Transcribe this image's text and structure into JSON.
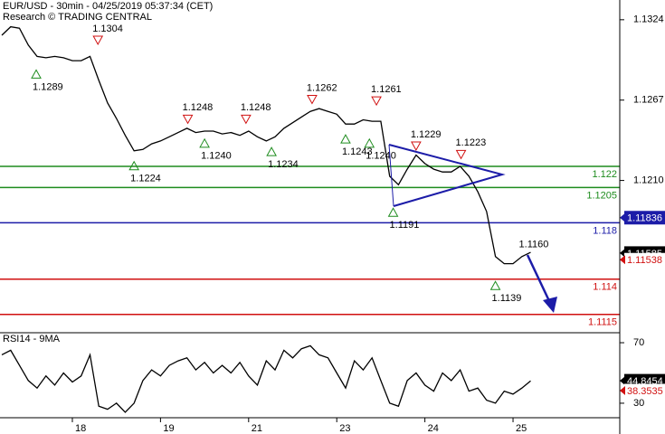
{
  "chart_data": [
    {
      "type": "line",
      "title": "EUR/USD - 30min - 04/25/2019 05:37:34 (CET)",
      "subtitle": "Research © TRADING CENTRAL",
      "xlim": [
        0.179,
        7.211
      ],
      "ylim": [
        1.1102,
        1.1338
      ],
      "yticks": [
        1.1324,
        1.1267,
        {
          "value": 1.121,
          "label": "1.1210"
        }
      ],
      "x": [
        0.2,
        0.3,
        0.4,
        0.5,
        0.6,
        0.7,
        0.8,
        0.9,
        1.0,
        1.1,
        1.2,
        1.3,
        1.4,
        1.5,
        1.6,
        1.7,
        1.8,
        1.9,
        2.0,
        2.1,
        2.2,
        2.3,
        2.4,
        2.5,
        2.6,
        2.7,
        2.8,
        2.9,
        3.0,
        3.1,
        3.2,
        3.3,
        3.4,
        3.5,
        3.6,
        3.7,
        3.8,
        3.9,
        4.0,
        4.1,
        4.2,
        4.3,
        4.4,
        4.5,
        4.6,
        4.7,
        4.8,
        4.9,
        5.0,
        5.1,
        5.2,
        5.3,
        5.4,
        5.5,
        5.6,
        5.7,
        5.8,
        5.9,
        6.0,
        6.1,
        6.2
      ],
      "series": [
        {
          "color": "#000000",
          "values": [
            1.1313,
            1.1319,
            1.1318,
            1.1306,
            1.1298,
            1.1297,
            1.1298,
            1.1297,
            1.1295,
            1.1295,
            1.1298,
            1.1281,
            1.1265,
            1.1254,
            1.1242,
            1.1231,
            1.1232,
            1.1236,
            1.1238,
            1.1241,
            1.1244,
            1.1247,
            1.1244,
            1.1245,
            1.1245,
            1.1243,
            1.1244,
            1.1242,
            1.1245,
            1.1241,
            1.1238,
            1.1241,
            1.1247,
            1.1251,
            1.1255,
            1.1259,
            1.1261,
            1.1259,
            1.1257,
            1.125,
            1.125,
            1.1253,
            1.1252,
            1.1252,
            1.1213,
            1.1207,
            1.1218,
            1.1228,
            1.1222,
            1.1218,
            1.1216,
            1.1216,
            1.122,
            1.1213,
            1.1202,
            1.1188,
            1.1156,
            1.1151,
            1.1151,
            1.1156,
            1.1159
          ]
        }
      ],
      "levels": [
        {
          "value": 1.122,
          "color": "#1e8c1e"
        },
        {
          "value": 1.1205,
          "color": "#1e8c1e"
        },
        {
          "value": 1.118,
          "color": "#1c1ca8"
        },
        {
          "value": 1.114,
          "color": "#d01010"
        },
        {
          "value": 1.1115,
          "color": "#d01010"
        }
      ],
      "annotations": [
        {
          "x": 1.29,
          "value": 1.1304,
          "marker": "down"
        },
        {
          "x": 0.59,
          "value": 1.1289,
          "marker": "up"
        },
        {
          "x": 1.7,
          "value": 1.1224,
          "marker": "up"
        },
        {
          "x": 2.31,
          "value": 1.1248,
          "marker": "down"
        },
        {
          "x": 2.5,
          "value": 1.124,
          "label": "1.1240",
          "marker": "up"
        },
        {
          "x": 2.97,
          "value": 1.1248,
          "marker": "down"
        },
        {
          "x": 3.26,
          "value": 1.1234,
          "marker": "up"
        },
        {
          "x": 3.72,
          "value": 1.1262,
          "marker": "down"
        },
        {
          "x": 4.1,
          "value": 1.1243,
          "marker": "up"
        },
        {
          "x": 4.37,
          "value": 1.124,
          "label": "1.1240",
          "marker": "up"
        },
        {
          "x": 4.45,
          "value": 1.1261,
          "marker": "down"
        },
        {
          "x": 4.64,
          "value": 1.1191,
          "marker": "up"
        },
        {
          "x": 4.9,
          "value": 1.1229,
          "marker": "down"
        },
        {
          "x": 5.41,
          "value": 1.1223,
          "marker": "down"
        },
        {
          "x": 6.2,
          "value": 1.116,
          "label": "1.1160"
        },
        {
          "x": 5.8,
          "value": 1.1139,
          "marker": "up"
        }
      ],
      "price_tags": [
        {
          "value": 1.11836,
          "color": "#1c1ca8",
          "filled": true
        },
        {
          "value": 1.11585,
          "color": "#000000",
          "filled": true
        },
        {
          "value": 1.11538,
          "color": "#d01010",
          "filled": false
        }
      ]
    },
    {
      "type": "line",
      "title": "RSI14 - 9MA",
      "xlim": [
        0.179,
        7.211
      ],
      "ylim": [
        20.4,
        76.6
      ],
      "yticks": [
        70,
        30
      ],
      "xticks": [
        {
          "value": 1,
          "label": "18"
        },
        {
          "value": 2,
          "label": "19"
        },
        {
          "value": 3,
          "label": "21"
        },
        {
          "value": 4,
          "label": "23"
        },
        {
          "value": 5,
          "label": "24"
        },
        {
          "value": 6,
          "label": "25"
        }
      ],
      "x": [
        0.2,
        0.3,
        0.4,
        0.5,
        0.6,
        0.7,
        0.8,
        0.9,
        1.0,
        1.1,
        1.2,
        1.3,
        1.4,
        1.5,
        1.6,
        1.7,
        1.8,
        1.9,
        2.0,
        2.1,
        2.2,
        2.3,
        2.4,
        2.5,
        2.6,
        2.7,
        2.8,
        2.9,
        3.0,
        3.1,
        3.2,
        3.3,
        3.4,
        3.5,
        3.6,
        3.7,
        3.8,
        3.9,
        4.0,
        4.1,
        4.2,
        4.3,
        4.4,
        4.5,
        4.6,
        4.7,
        4.8,
        4.9,
        5.0,
        5.1,
        5.2,
        5.3,
        5.4,
        5.5,
        5.6,
        5.7,
        5.8,
        5.9,
        6.0,
        6.1,
        6.2
      ],
      "series": [
        {
          "color": "#000000",
          "values": [
            62,
            65,
            55,
            45,
            40,
            48,
            42,
            50,
            44,
            48,
            62,
            28,
            26,
            30,
            24,
            30,
            45,
            52,
            48,
            55,
            58,
            60,
            52,
            57,
            50,
            55,
            50,
            57,
            48,
            42,
            58,
            52,
            65,
            60,
            66,
            68,
            62,
            60,
            50,
            40,
            58,
            52,
            60,
            45,
            30,
            28,
            45,
            50,
            42,
            38,
            50,
            45,
            52,
            38,
            40,
            32,
            30,
            38,
            36,
            40,
            44.8
          ]
        }
      ],
      "price_tags": [
        {
          "value": 44.8454,
          "color": "#000000",
          "filled": true
        },
        {
          "value": 38.3535,
          "color": "#d01010",
          "filled": false
        }
      ]
    }
  ]
}
